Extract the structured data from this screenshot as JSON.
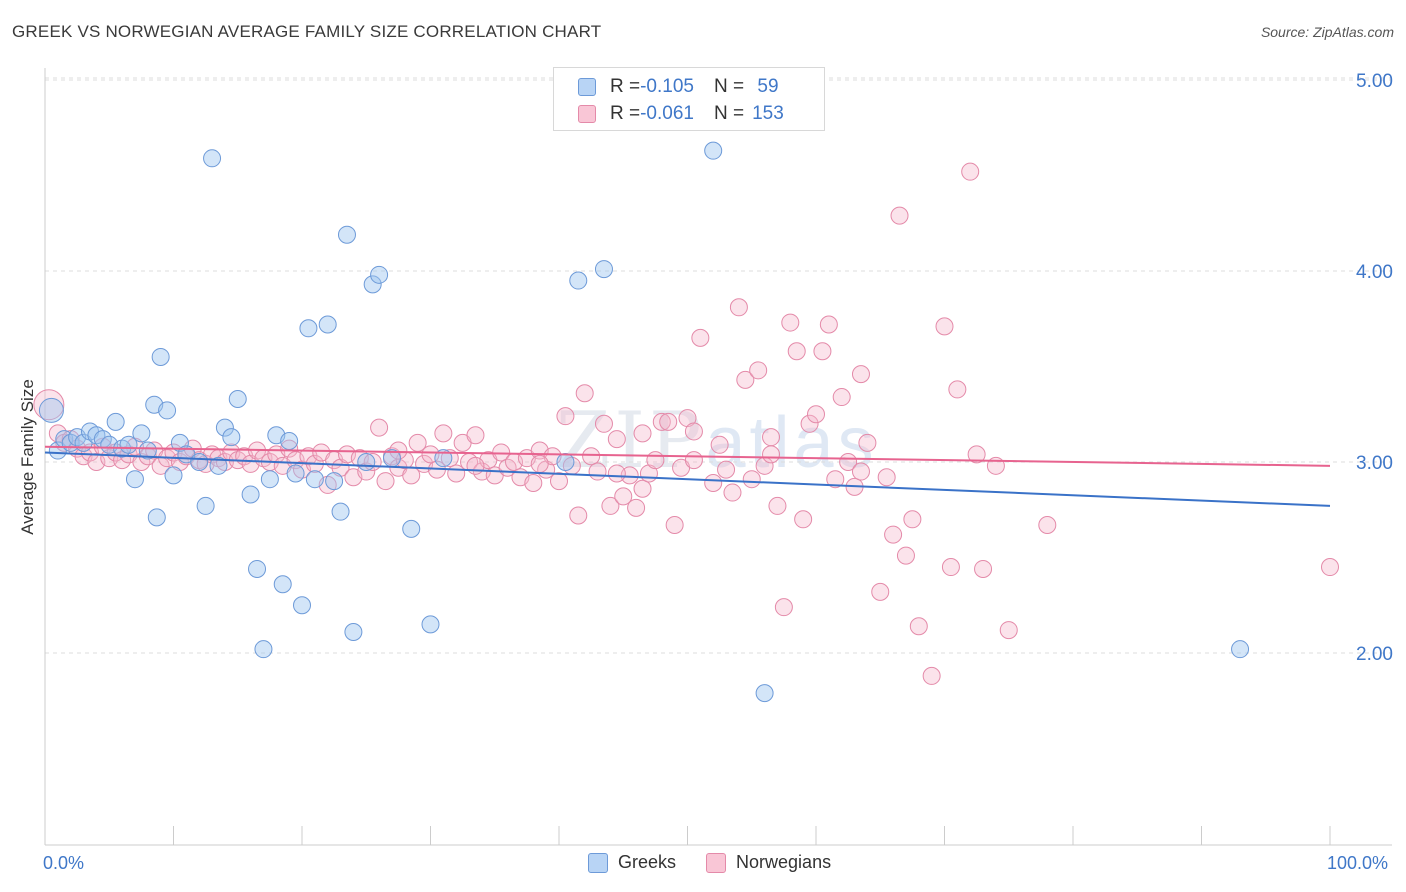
{
  "title": "GREEK VS NORWEGIAN AVERAGE FAMILY SIZE CORRELATION CHART",
  "source": "Source: ZipAtlas.com",
  "watermark": {
    "zip": "ZIP",
    "atlas": "atlas"
  },
  "legend_top": [
    {
      "r_label": "R = ",
      "r_value": "-0.105",
      "n_label": "N = ",
      "n_value": " 59"
    },
    {
      "r_label": "R = ",
      "r_value": "-0.061",
      "n_label": "N = ",
      "n_value": "153"
    }
  ],
  "legend_bottom": [
    "Greeks",
    "Norwegians"
  ],
  "colors": {
    "greeks": "#9ec5f0",
    "greeks_stroke": "#5b8fd6",
    "greeks_line": "#3a72c8",
    "norwegians": "#f6b8cc",
    "norwegians_stroke": "#e07fa0",
    "norwegians_line": "#e7638f",
    "axis_text": "#3f77c8"
  },
  "chart_data": {
    "type": "scatter",
    "title": "GREEK VS NORWEGIAN AVERAGE FAMILY SIZE CORRELATION CHART",
    "xlabel": "",
    "ylabel": "Average Family Size",
    "xlim": [
      0,
      100
    ],
    "ylim": [
      1.0,
      5.1
    ],
    "x_tick_labels": [
      "0.0%",
      "100.0%"
    ],
    "y_ticks": [
      2.0,
      3.0,
      4.0,
      5.0
    ],
    "y_tick_labels": [
      "2.00",
      "3.00",
      "4.00",
      "5.00"
    ],
    "grid": true,
    "legend_position": "top-center",
    "series": [
      {
        "name": "Greeks",
        "r": -0.105,
        "n": 59,
        "trend": {
          "x": [
            0,
            100
          ],
          "y": [
            3.05,
            2.77
          ]
        },
        "points": [
          [
            0.5,
            3.27
          ],
          [
            1,
            3.06
          ],
          [
            1.5,
            3.12
          ],
          [
            2,
            3.1
          ],
          [
            2.5,
            3.13
          ],
          [
            3,
            3.1
          ],
          [
            3.5,
            3.16
          ],
          [
            4,
            3.14
          ],
          [
            4.5,
            3.12
          ],
          [
            5,
            3.09
          ],
          [
            5.5,
            3.21
          ],
          [
            6,
            3.07
          ],
          [
            6.5,
            3.09
          ],
          [
            7,
            2.91
          ],
          [
            7.5,
            3.15
          ],
          [
            8,
            3.06
          ],
          [
            8.5,
            3.3
          ],
          [
            8.7,
            2.71
          ],
          [
            9,
            3.55
          ],
          [
            9.5,
            3.27
          ],
          [
            10,
            2.93
          ],
          [
            10.5,
            3.1
          ],
          [
            11,
            3.04
          ],
          [
            12,
            3.0
          ],
          [
            12.5,
            2.77
          ],
          [
            13,
            4.59
          ],
          [
            13.5,
            2.98
          ],
          [
            14,
            3.18
          ],
          [
            14.5,
            3.13
          ],
          [
            15,
            3.33
          ],
          [
            16,
            2.83
          ],
          [
            16.5,
            2.44
          ],
          [
            17,
            2.02
          ],
          [
            17.5,
            2.91
          ],
          [
            18,
            3.14
          ],
          [
            18.5,
            2.36
          ],
          [
            19,
            3.11
          ],
          [
            19.5,
            2.94
          ],
          [
            20,
            2.25
          ],
          [
            20.5,
            3.7
          ],
          [
            21,
            2.91
          ],
          [
            22,
            3.72
          ],
          [
            22.5,
            2.9
          ],
          [
            23,
            2.74
          ],
          [
            23.5,
            4.19
          ],
          [
            24,
            2.11
          ],
          [
            25,
            3.0
          ],
          [
            25.5,
            3.93
          ],
          [
            26,
            3.98
          ],
          [
            27,
            3.02
          ],
          [
            28.5,
            2.65
          ],
          [
            30,
            2.15
          ],
          [
            31,
            3.02
          ],
          [
            40.5,
            3.0
          ],
          [
            41.5,
            3.95
          ],
          [
            43.5,
            4.01
          ],
          [
            52,
            4.63
          ],
          [
            56,
            1.79
          ],
          [
            93,
            2.02
          ]
        ]
      },
      {
        "name": "Norwegians",
        "r": -0.061,
        "n": 153,
        "trend": {
          "x": [
            0,
            100
          ],
          "y": [
            3.08,
            2.98
          ]
        },
        "points": [
          [
            0.3,
            3.3
          ],
          [
            1,
            3.15
          ],
          [
            1.5,
            3.1
          ],
          [
            2,
            3.12
          ],
          [
            2.5,
            3.07
          ],
          [
            3,
            3.03
          ],
          [
            3.5,
            3.05
          ],
          [
            4,
            3.0
          ],
          [
            4.5,
            3.08
          ],
          [
            5,
            3.02
          ],
          [
            5.5,
            3.05
          ],
          [
            6,
            3.01
          ],
          [
            6.5,
            3.04
          ],
          [
            7,
            3.08
          ],
          [
            7.5,
            3.0
          ],
          [
            8,
            3.03
          ],
          [
            8.5,
            3.06
          ],
          [
            9,
            2.98
          ],
          [
            9.5,
            3.02
          ],
          [
            10,
            3.05
          ],
          [
            10.5,
            3.0
          ],
          [
            11,
            3.03
          ],
          [
            11.5,
            3.07
          ],
          [
            12,
            3.01
          ],
          [
            12.5,
            2.99
          ],
          [
            13,
            3.04
          ],
          [
            13.5,
            3.02
          ],
          [
            14,
            3.0
          ],
          [
            14.5,
            3.05
          ],
          [
            15,
            3.01
          ],
          [
            15.5,
            3.03
          ],
          [
            16,
            2.99
          ],
          [
            16.5,
            3.06
          ],
          [
            17,
            3.02
          ],
          [
            17.5,
            3.0
          ],
          [
            18,
            3.04
          ],
          [
            18.5,
            2.98
          ],
          [
            19,
            3.07
          ],
          [
            19.5,
            3.01
          ],
          [
            20,
            2.96
          ],
          [
            20.5,
            3.03
          ],
          [
            21,
            2.99
          ],
          [
            21.5,
            3.05
          ],
          [
            22,
            2.88
          ],
          [
            22.5,
            3.01
          ],
          [
            23,
            2.97
          ],
          [
            23.5,
            3.04
          ],
          [
            24,
            2.92
          ],
          [
            24.5,
            3.02
          ],
          [
            25,
            2.95
          ],
          [
            25.5,
            3.0
          ],
          [
            26,
            3.18
          ],
          [
            26.5,
            2.9
          ],
          [
            27,
            3.03
          ],
          [
            27.5,
            2.97
          ],
          [
            28,
            3.01
          ],
          [
            28.5,
            2.93
          ],
          [
            29,
            3.1
          ],
          [
            29.5,
            2.99
          ],
          [
            30,
            3.04
          ],
          [
            30.5,
            2.96
          ],
          [
            31,
            3.15
          ],
          [
            31.5,
            3.02
          ],
          [
            32,
            2.94
          ],
          [
            32.5,
            3.1
          ],
          [
            33,
            3.0
          ],
          [
            33.5,
            3.14
          ],
          [
            34,
            2.95
          ],
          [
            34.5,
            3.01
          ],
          [
            35,
            2.93
          ],
          [
            35.5,
            3.05
          ],
          [
            36,
            2.97
          ],
          [
            36.5,
            3.0
          ],
          [
            37,
            2.92
          ],
          [
            37.5,
            3.02
          ],
          [
            38,
            2.89
          ],
          [
            38.5,
            3.06
          ],
          [
            39,
            2.96
          ],
          [
            39.5,
            3.03
          ],
          [
            40,
            2.9
          ],
          [
            40.5,
            3.24
          ],
          [
            41,
            2.98
          ],
          [
            41.5,
            2.72
          ],
          [
            42,
            3.36
          ],
          [
            42.5,
            3.03
          ],
          [
            43,
            2.95
          ],
          [
            43.5,
            3.2
          ],
          [
            44,
            2.77
          ],
          [
            44.5,
            3.12
          ],
          [
            45,
            2.82
          ],
          [
            45.5,
            2.93
          ],
          [
            46,
            2.76
          ],
          [
            46.5,
            2.86
          ],
          [
            47,
            2.94
          ],
          [
            47.5,
            3.01
          ],
          [
            48,
            3.21
          ],
          [
            48.5,
            3.21
          ],
          [
            49,
            2.67
          ],
          [
            49.5,
            2.97
          ],
          [
            50,
            3.23
          ],
          [
            50.5,
            3.16
          ],
          [
            51,
            3.65
          ],
          [
            52,
            2.89
          ],
          [
            52.5,
            3.09
          ],
          [
            53,
            2.96
          ],
          [
            53.5,
            2.84
          ],
          [
            54,
            3.81
          ],
          [
            54.5,
            3.43
          ],
          [
            55,
            2.91
          ],
          [
            55.5,
            3.48
          ],
          [
            56,
            2.98
          ],
          [
            56.5,
            3.13
          ],
          [
            57,
            2.77
          ],
          [
            57.5,
            2.24
          ],
          [
            58,
            3.73
          ],
          [
            58.5,
            3.58
          ],
          [
            59,
            2.7
          ],
          [
            59.5,
            3.2
          ],
          [
            60,
            3.25
          ],
          [
            60.5,
            3.58
          ],
          [
            61,
            3.72
          ],
          [
            61.5,
            2.91
          ],
          [
            62,
            3.34
          ],
          [
            62.5,
            3.0
          ],
          [
            63,
            2.87
          ],
          [
            63.5,
            3.46
          ],
          [
            64,
            3.1
          ],
          [
            65,
            2.32
          ],
          [
            65.5,
            2.92
          ],
          [
            66,
            2.62
          ],
          [
            66.5,
            4.29
          ],
          [
            67,
            2.51
          ],
          [
            67.5,
            2.7
          ],
          [
            68,
            2.14
          ],
          [
            69,
            1.88
          ],
          [
            70,
            3.71
          ],
          [
            70.5,
            2.45
          ],
          [
            71,
            3.38
          ],
          [
            72,
            4.52
          ],
          [
            72.5,
            3.04
          ],
          [
            73,
            2.44
          ],
          [
            74,
            2.98
          ],
          [
            75,
            2.12
          ],
          [
            78,
            2.67
          ],
          [
            100,
            2.45
          ],
          [
            50.5,
            3.01
          ],
          [
            63.5,
            2.95
          ],
          [
            38.5,
            2.99
          ],
          [
            46.5,
            3.15
          ],
          [
            27.5,
            3.06
          ],
          [
            33.5,
            2.98
          ],
          [
            44.5,
            2.94
          ],
          [
            56.5,
            3.04
          ]
        ]
      }
    ]
  }
}
